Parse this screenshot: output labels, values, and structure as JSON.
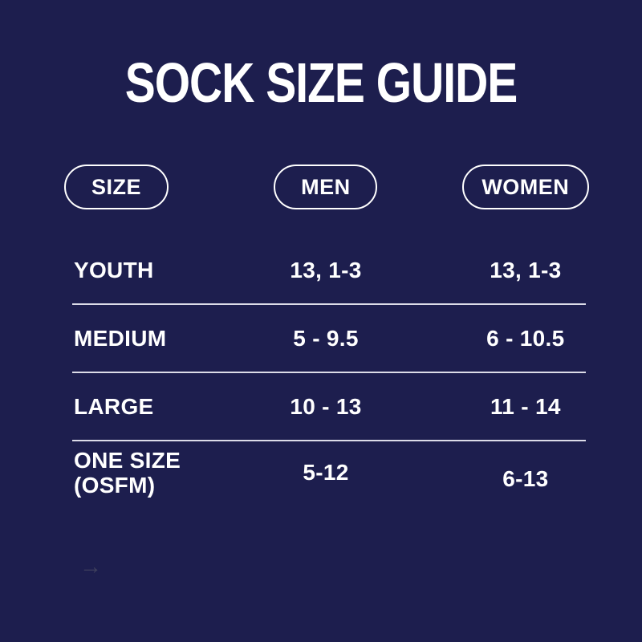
{
  "theme": {
    "background": "#1d1e4e",
    "text_color": "#ffffff",
    "divider_color": "#ededf5",
    "pill_border_color": "#ffffff",
    "arrow_color": "#454660"
  },
  "chart_data": {
    "type": "table",
    "title": "SOCK SIZE GUIDE",
    "columns": [
      "SIZE",
      "MEN",
      "WOMEN"
    ],
    "rows": [
      [
        "YOUTH",
        "13, 1-3",
        "13, 1-3"
      ],
      [
        "MEDIUM",
        "5 - 9.5",
        "6 - 10.5"
      ],
      [
        "LARGE",
        "10 - 13",
        "11 - 14"
      ],
      [
        "ONE SIZE\n(OSFM)",
        "5-12",
        "6-13"
      ]
    ]
  },
  "decor": {
    "arrow_glyph": "→"
  }
}
